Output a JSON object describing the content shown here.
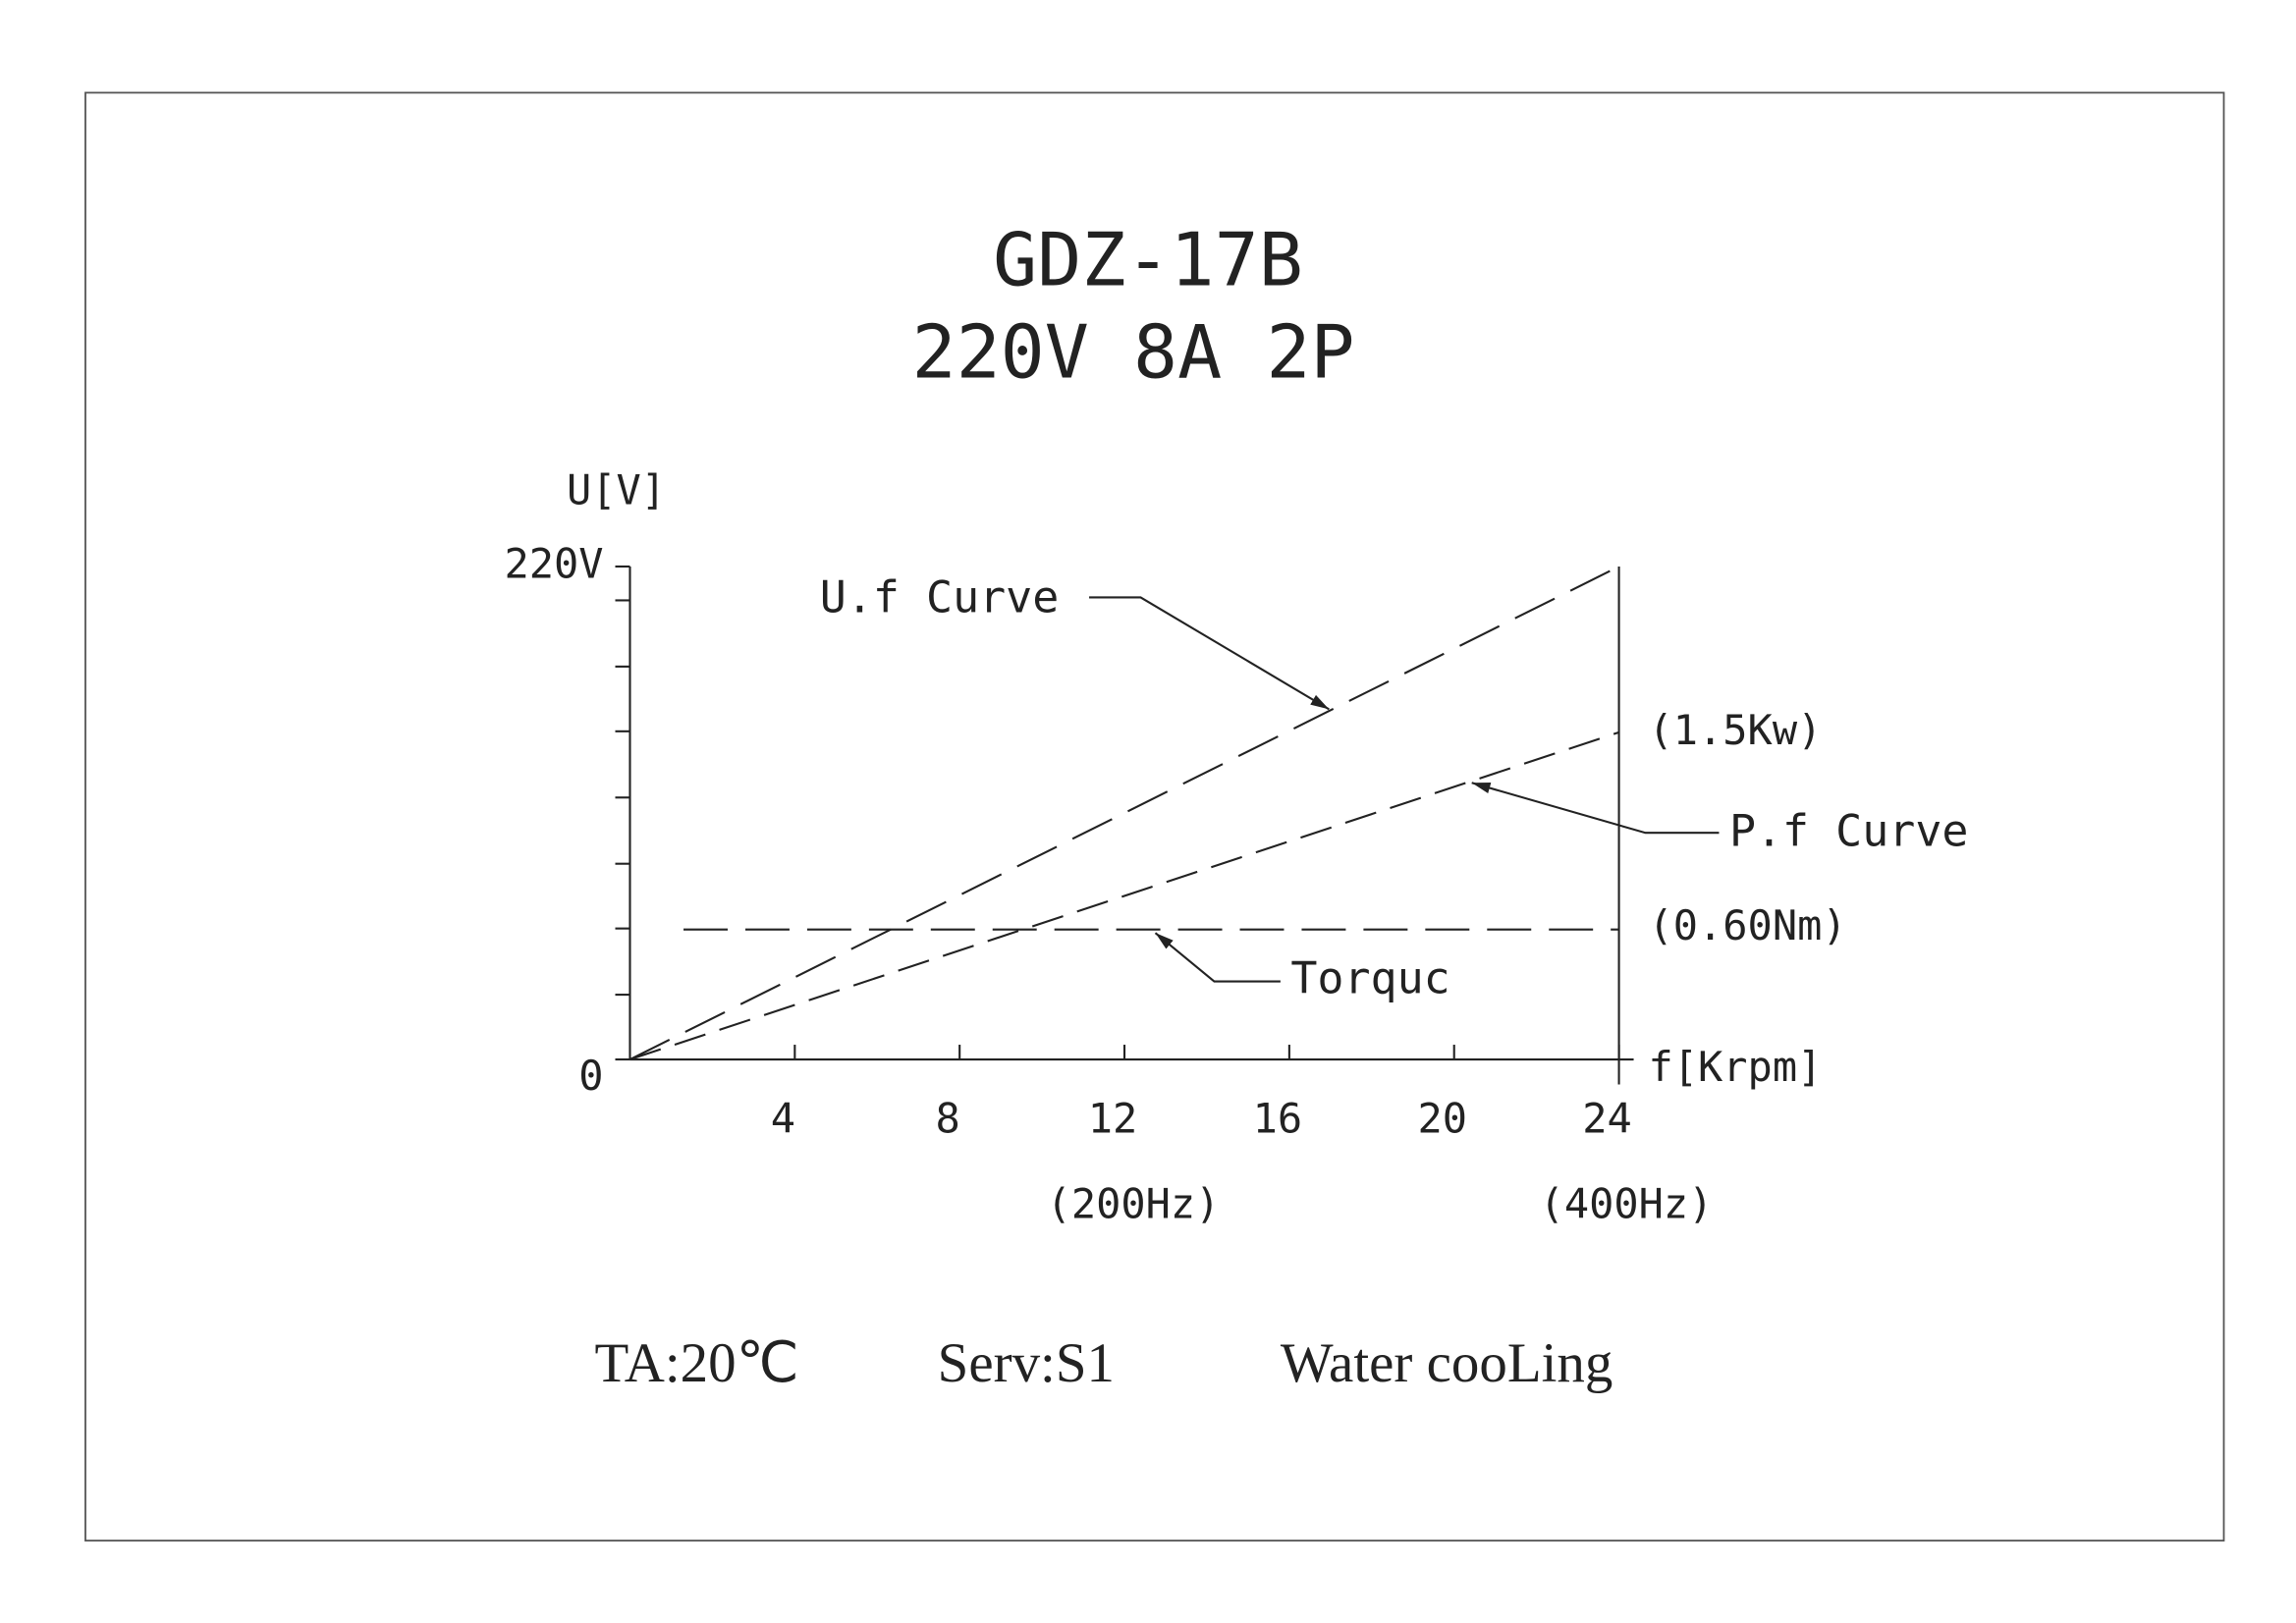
{
  "chart_data": {
    "type": "line",
    "title": "GDZ-17B",
    "subtitle": "220V 8A 2P",
    "y_label": "U[V]",
    "x_label": "f[Krpm]",
    "xlim": [
      0,
      24
    ],
    "ylim": [
      0,
      220
    ],
    "xticks": [
      4,
      8,
      12,
      16,
      20,
      24
    ],
    "yticks": [
      0,
      {
        "value": 220,
        "label": "220V"
      }
    ],
    "color": "#222222",
    "series": [
      {
        "name": "U.f Curve",
        "x": [
          0,
          24
        ],
        "values": [
          0,
          220
        ]
      },
      {
        "name": "P.f Curve",
        "x": [
          0,
          24
        ],
        "values": [
          0,
          146
        ]
      },
      {
        "name": "Torquc",
        "x": [
          1.3,
          24
        ],
        "values": [
          58,
          58
        ]
      }
    ],
    "annotations": [
      "(1.5Kw)",
      "(0.60Nm)",
      "(200Hz)",
      "(400Hz)"
    ],
    "footer": [
      "TA:20℃",
      "Serv:S1",
      "Water cooLing"
    ]
  }
}
